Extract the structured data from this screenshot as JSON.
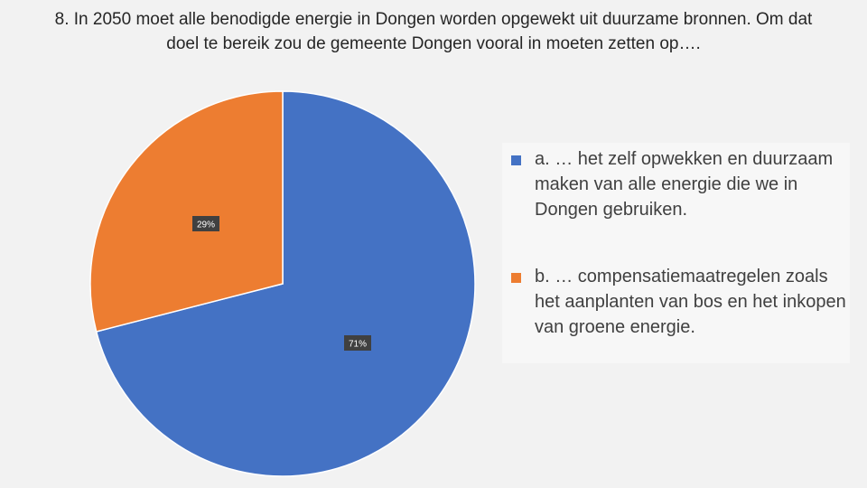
{
  "title": "8. In 2050 moet alle benodigde energie in Dongen worden opgewekt uit duurzame bronnen. Om dat doel te bereik zou de gemeente Dongen vooral in moeten zetten op….",
  "chart_data": {
    "type": "pie",
    "title": "8. In 2050 moet alle benodigde energie in Dongen worden opgewekt uit duurzame bronnen. Om dat doel te bereik zou de gemeente Dongen vooral in moeten zetten op….",
    "slices": [
      {
        "label": "a. … het zelf opwekken en duurzaam maken van alle energie die we in Dongen gebruiken.",
        "value": 71,
        "data_label": "71%",
        "color": "#4472c4"
      },
      {
        "label": "b. … compensatiemaatregelen zoals het aanplanten van bos en het inkopen van groene energie.",
        "value": 29,
        "data_label": "29%",
        "color": "#ed7d31"
      }
    ],
    "legend": "right"
  }
}
